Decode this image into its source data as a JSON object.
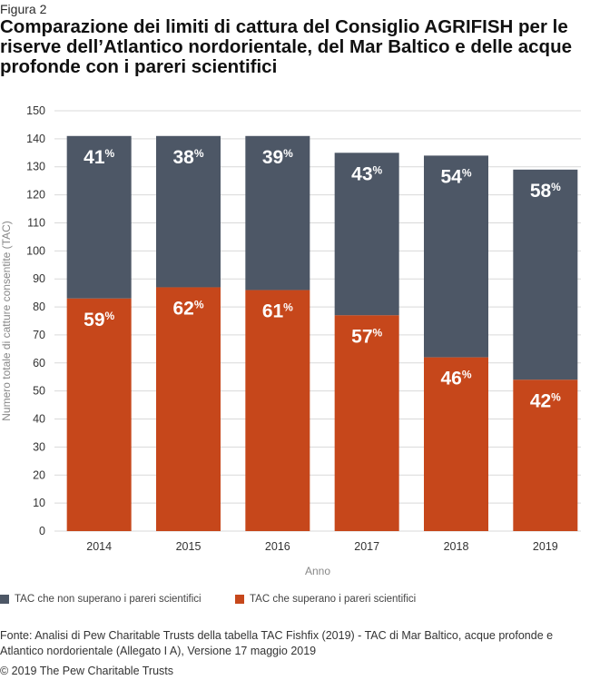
{
  "figure_label": "Figura 2",
  "title": "Comparazione dei limiti di cattura del Consiglio AGRIFISH per le riserve dell’Atlantico nordorientale, del Mar Baltico e delle acque profonde con i pareri scientifici",
  "colors": {
    "not_exceeding": "#4d5766",
    "exceeding": "#c6471b",
    "grid": "#d9d9d9"
  },
  "chart_data": {
    "type": "bar",
    "stacked": true,
    "categories": [
      "2014",
      "2015",
      "2016",
      "2017",
      "2018",
      "2019"
    ],
    "series": [
      {
        "name": "TAC che superano i pareri scientifici",
        "values": [
          83,
          87,
          86,
          77,
          62,
          54
        ],
        "labels": [
          "59",
          "62",
          "61",
          "57",
          "46",
          "42"
        ]
      },
      {
        "name": "TAC che non superano i pareri scientifici",
        "values": [
          58,
          54,
          55,
          58,
          72,
          75
        ],
        "labels": [
          "41",
          "38",
          "39",
          "43",
          "54",
          "58"
        ]
      }
    ],
    "percent_symbol": "%",
    "xlabel": "Anno",
    "ylabel": "Numero totale di catture consentite (TAC)",
    "ylim": [
      0,
      150
    ],
    "yticks": [
      0,
      10,
      20,
      30,
      40,
      50,
      60,
      70,
      80,
      90,
      100,
      110,
      120,
      130,
      140,
      150
    ],
    "grid": true,
    "legend_position": "bottom"
  },
  "legend": {
    "not_exceeding": "TAC che non superano i pareri scientifici",
    "exceeding": "TAC che superano i pareri scientifici"
  },
  "source": "Fonte: Analisi di Pew Charitable Trusts della tabella TAC Fishfix (2019) - TAC di Mar Baltico, acque profonde e Atlantico nordorientale (Allegato I A), Versione 17 maggio 2019",
  "copyright": "© 2019 The Pew Charitable Trusts"
}
